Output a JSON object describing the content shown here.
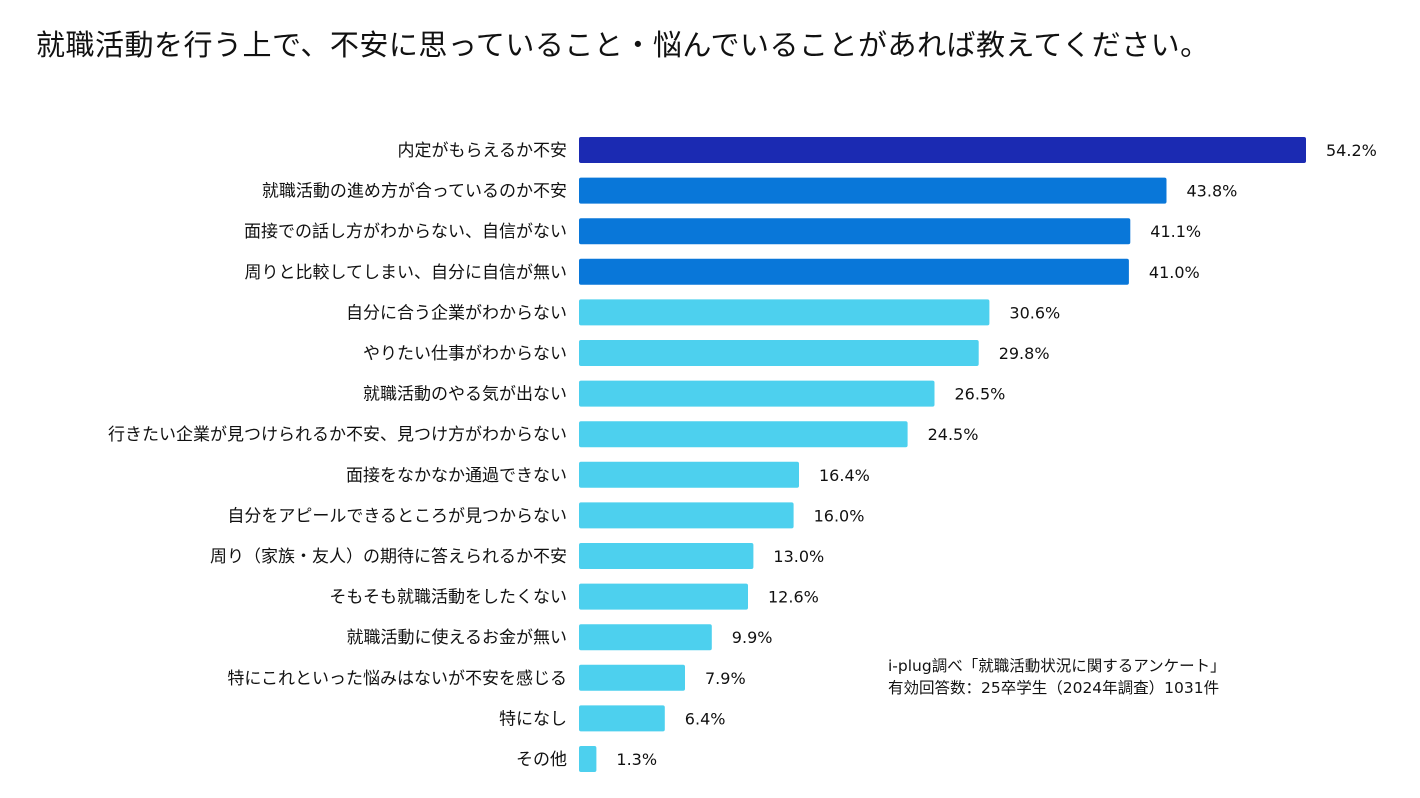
{
  "chart_data": {
    "type": "bar",
    "orientation": "horizontal",
    "title": "就職活動を行う上で、不安に思っていること・悩んでいることがあれば教えてください。",
    "categories": [
      "内定がもらえるか不安",
      "就職活動の進め方が合っているのか不安",
      "面接での話し方がわからない、自信がない",
      "周りと比較してしまい、自分に自信が無い",
      "自分に合う企業がわからない",
      "やりたい仕事がわからない",
      "就職活動のやる気が出ない",
      "行きたい企業が見つけられるか不安、見つけ方がわからない",
      "面接をなかなか通過できない",
      "自分をアピールできるところが見つからない",
      "周り（家族・友人）の期待に答えられるか不安",
      "そもそも就職活動をしたくない",
      "就職活動に使えるお金が無い",
      "特にこれといった悩みはないが不安を感じる",
      "特になし",
      "その他"
    ],
    "values": [
      54.2,
      43.8,
      41.1,
      41.0,
      30.6,
      29.8,
      26.5,
      24.5,
      16.4,
      16.0,
      13.0,
      12.6,
      9.9,
      7.9,
      6.4,
      1.3
    ],
    "value_labels": [
      "54.2%",
      "43.8%",
      "41.1%",
      "41.0%",
      "30.6%",
      "29.8%",
      "26.5%",
      "24.5%",
      "16.4%",
      "16.0%",
      "13.0%",
      "12.6%",
      "9.9%",
      "7.9%",
      "6.4%",
      "1.3%"
    ],
    "bar_colors": [
      "#1b2ab2",
      "#0977d9",
      "#0977d9",
      "#0977d9",
      "#4dd0ee",
      "#4dd0ee",
      "#4dd0ee",
      "#4dd0ee",
      "#4dd0ee",
      "#4dd0ee",
      "#4dd0ee",
      "#4dd0ee",
      "#4dd0ee",
      "#4dd0ee",
      "#4dd0ee",
      "#4dd0ee"
    ],
    "unit": "%",
    "xlim": [
      0,
      54.2
    ],
    "grid": false,
    "legend": "none"
  },
  "source": {
    "line1": "i-plug調べ「就職活動状況に関するアンケート」",
    "line2": "有効回答数：25卒学生（2024年調査）1031件"
  }
}
